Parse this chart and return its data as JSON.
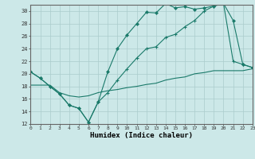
{
  "title": "",
  "xlabel": "Humidex (Indice chaleur)",
  "background_color": "#cce8e8",
  "grid_color": "#aacccc",
  "line_color": "#1a7a6a",
  "xlim": [
    0,
    23
  ],
  "ylim": [
    12,
    31
  ],
  "yticks": [
    12,
    14,
    16,
    18,
    20,
    22,
    24,
    26,
    28,
    30
  ],
  "xticks": [
    0,
    1,
    2,
    3,
    4,
    5,
    6,
    7,
    8,
    9,
    10,
    11,
    12,
    13,
    14,
    15,
    16,
    17,
    18,
    19,
    20,
    21,
    22,
    23
  ],
  "line1_x": [
    0,
    1,
    2,
    3,
    4,
    5,
    6,
    7,
    8,
    9,
    10,
    11,
    12,
    13,
    14,
    15,
    16,
    17,
    18,
    19,
    20,
    21,
    22,
    23
  ],
  "line1_y": [
    20.3,
    19.3,
    18.0,
    16.8,
    15.0,
    14.5,
    12.3,
    15.5,
    20.3,
    24.0,
    26.2,
    28.0,
    29.8,
    29.7,
    31.2,
    30.5,
    30.7,
    30.3,
    30.5,
    30.8,
    31.2,
    28.5,
    21.5,
    21.0
  ],
  "line2_x": [
    0,
    1,
    2,
    3,
    4,
    5,
    6,
    7,
    8,
    9,
    10,
    11,
    12,
    13,
    14,
    15,
    16,
    17,
    18,
    19,
    20,
    21,
    22,
    23
  ],
  "line2_y": [
    20.3,
    19.3,
    18.0,
    16.8,
    15.0,
    14.5,
    12.3,
    15.5,
    17.0,
    19.0,
    20.8,
    22.5,
    24.0,
    24.3,
    25.8,
    26.3,
    27.5,
    28.5,
    30.0,
    30.8,
    31.2,
    22.0,
    21.5,
    21.0
  ],
  "line3_x": [
    0,
    1,
    2,
    3,
    4,
    5,
    6,
    7,
    8,
    9,
    10,
    11,
    12,
    13,
    14,
    15,
    16,
    17,
    18,
    19,
    20,
    21,
    22,
    23
  ],
  "line3_y": [
    18.2,
    18.2,
    18.2,
    17.0,
    16.5,
    16.3,
    16.5,
    17.0,
    17.3,
    17.5,
    17.8,
    18.0,
    18.3,
    18.5,
    19.0,
    19.3,
    19.5,
    20.0,
    20.2,
    20.5,
    20.5,
    20.5,
    20.5,
    20.8
  ]
}
